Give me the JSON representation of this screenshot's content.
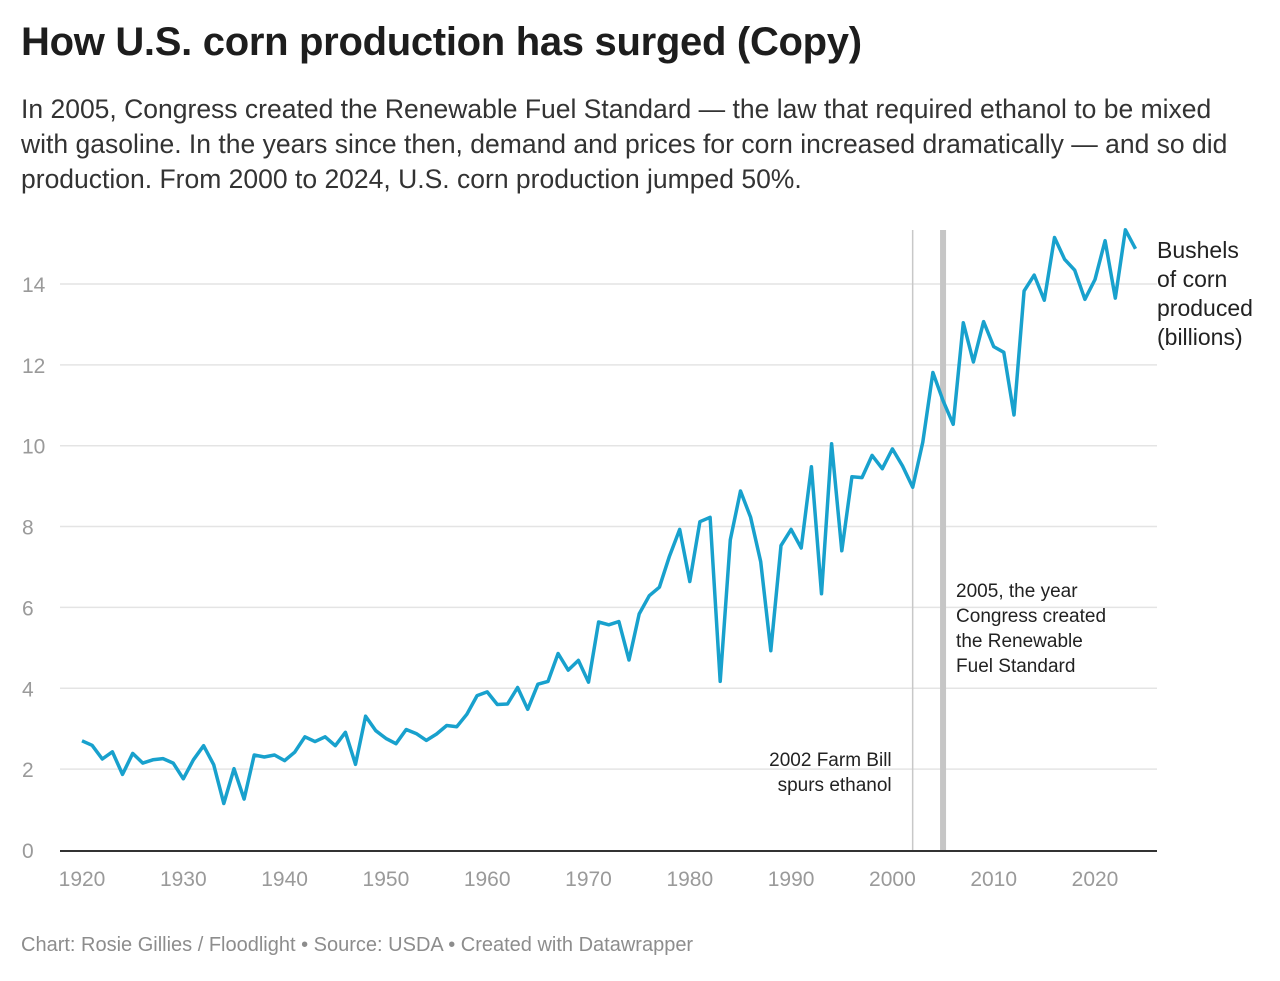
{
  "title": "How U.S. corn production has surged (Copy)",
  "subtitle": "In 2005, Congress created the Renewable Fuel Standard — the law that required ethanol to be mixed with gasoline. In the years since then, demand and prices for corn increased dramatically — and so did production. From 2000 to 2024, U.S. corn production jumped 50%.",
  "footer": {
    "credit": "Chart: Rosie Gillies / Floodlight",
    "source": "• Source: USDA",
    "tool": "• Created with Datawrapper"
  },
  "chart_data": {
    "type": "line",
    "title": "How U.S. corn production has surged (Copy)",
    "series_label": [
      "Bushels",
      "of corn",
      "produced",
      "(billions)"
    ],
    "color": "#18a1cd",
    "xlim": [
      1920,
      2024
    ],
    "ylim": [
      0,
      15.5
    ],
    "x_ticks": [
      "1920",
      "1930",
      "1940",
      "1950",
      "1960",
      "1970",
      "1980",
      "1990",
      "2000",
      "2010",
      "2020"
    ],
    "y_ticks": [
      "0",
      "2",
      "4",
      "6",
      "8",
      "10",
      "12",
      "14"
    ],
    "grid": true,
    "annotations": [
      {
        "year": 2002,
        "text": [
          "2002 Farm Bill",
          "spurs ethanol"
        ]
      },
      {
        "year": 2005,
        "text": [
          "2005, the year",
          "Congress created",
          "the Renewable",
          "Fuel Standard"
        ]
      }
    ],
    "x_start": 1920,
    "values": [
      2.7,
      2.59,
      2.25,
      2.43,
      1.87,
      2.39,
      2.15,
      2.23,
      2.26,
      2.15,
      1.76,
      2.23,
      2.58,
      2.11,
      1.15,
      2.01,
      1.26,
      2.35,
      2.3,
      2.35,
      2.21,
      2.42,
      2.8,
      2.68,
      2.8,
      2.58,
      2.91,
      2.12,
      3.31,
      2.95,
      2.76,
      2.63,
      2.98,
      2.88,
      2.71,
      2.87,
      3.08,
      3.05,
      3.36,
      3.82,
      3.91,
      3.6,
      3.61,
      4.02,
      3.48,
      4.1,
      4.17,
      4.86,
      4.45,
      4.69,
      4.15,
      5.64,
      5.57,
      5.65,
      4.7,
      5.84,
      6.29,
      6.5,
      7.27,
      7.93,
      6.64,
      8.12,
      8.23,
      4.17,
      7.67,
      8.88,
      8.23,
      7.13,
      4.93,
      7.53,
      7.93,
      7.47,
      9.48,
      6.34,
      10.05,
      7.4,
      9.23,
      9.21,
      9.76,
      9.43,
      9.92,
      9.5,
      8.97,
      10.09,
      11.81,
      11.11,
      10.53,
      13.04,
      12.07,
      13.07,
      12.45,
      12.31,
      10.76,
      13.83,
      14.22,
      13.6,
      15.15,
      14.61,
      14.34,
      13.62,
      14.11,
      15.07,
      13.65,
      15.34,
      14.87
    ]
  }
}
